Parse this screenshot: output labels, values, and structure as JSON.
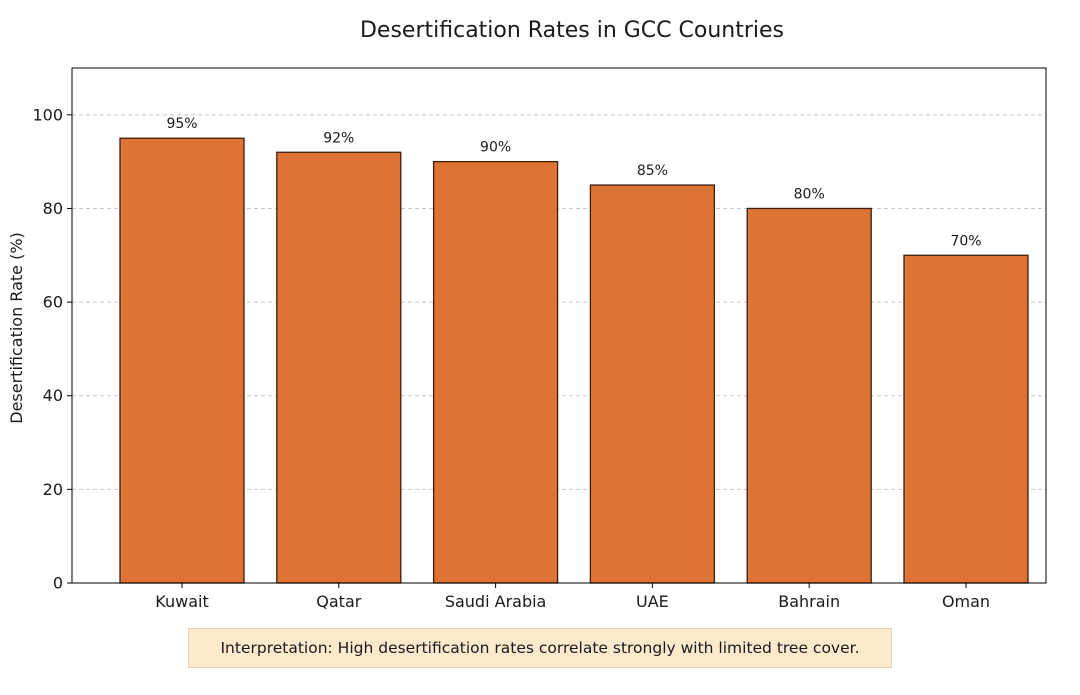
{
  "chart_data": {
    "type": "bar",
    "title": "Desertification Rates in GCC Countries",
    "xlabel": "",
    "ylabel": "Desertification Rate (%)",
    "categories": [
      "Kuwait",
      "Qatar",
      "Saudi Arabia",
      "UAE",
      "Bahrain",
      "Oman"
    ],
    "values": [
      95,
      92,
      90,
      85,
      80,
      70
    ],
    "data_labels": [
      "95%",
      "92%",
      "90%",
      "85%",
      "80%",
      "70%"
    ],
    "ylim": [
      0,
      110
    ],
    "yticks": [
      0,
      20,
      40,
      60,
      80,
      100
    ],
    "grid": "y-dashed",
    "bar_color": "#dd7433",
    "bar_edge_color": "#3b1f10"
  },
  "annotation": {
    "text": "Interpretation: High desertification rates correlate strongly with limited tree cover."
  }
}
